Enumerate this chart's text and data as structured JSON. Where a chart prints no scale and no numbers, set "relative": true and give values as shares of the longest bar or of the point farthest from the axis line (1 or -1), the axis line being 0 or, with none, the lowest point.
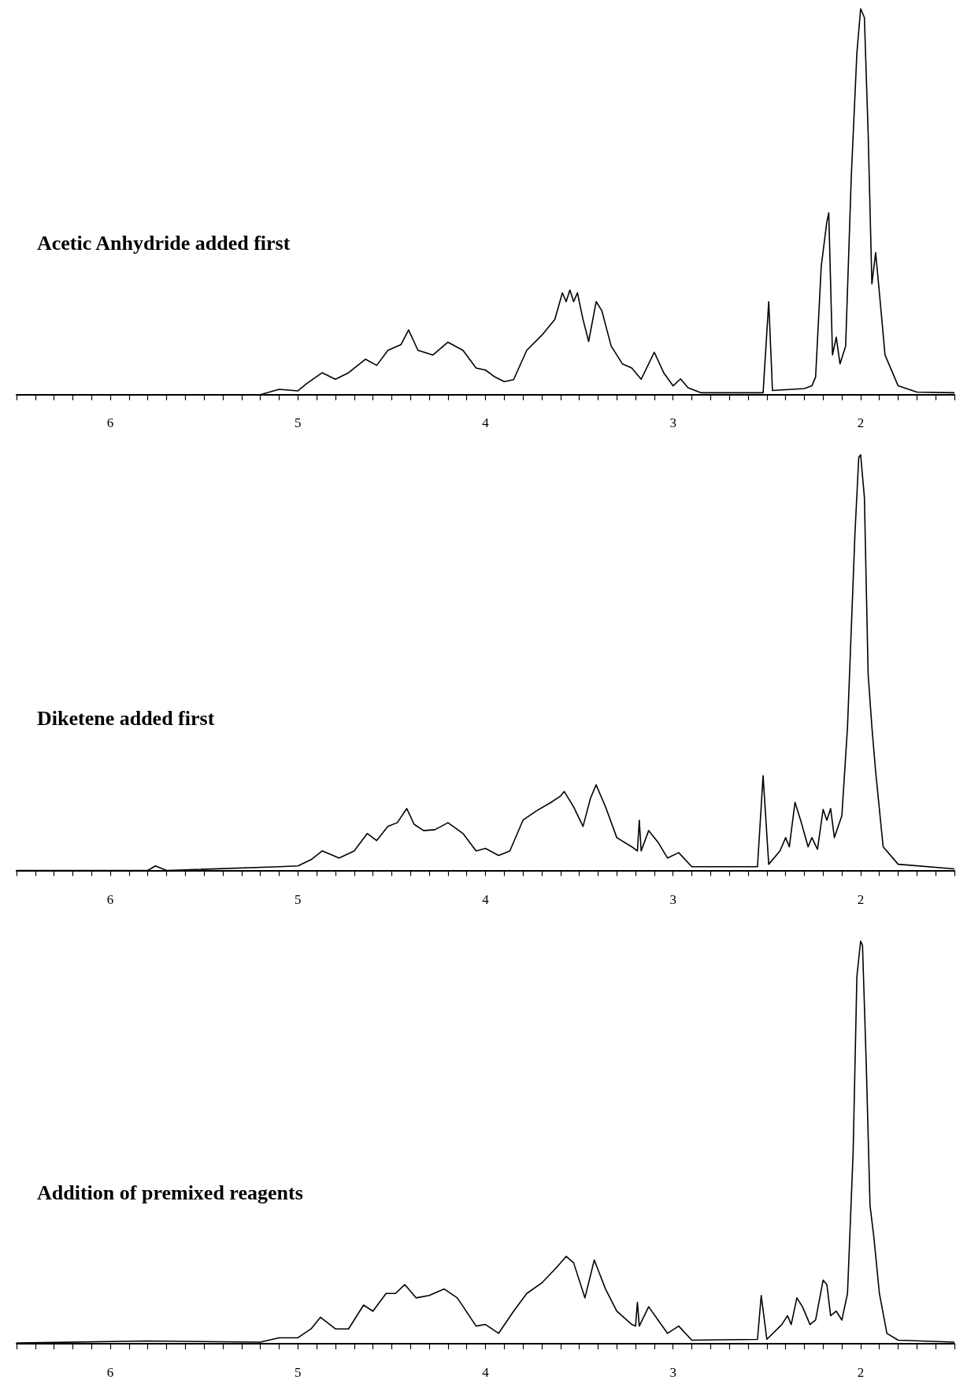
{
  "chart_data": [
    {
      "type": "line",
      "title": "Acetic Anhydride added first",
      "relative": true,
      "color": "#000000",
      "marker": "none",
      "xlim": [
        6.5,
        1.5
      ],
      "xticks": [
        {
          "value": 6.5,
          "label": null
        },
        {
          "value": 6.4,
          "label": null
        },
        {
          "value": 6.3,
          "label": null
        },
        {
          "value": 6.2,
          "label": null
        },
        {
          "value": 6.1,
          "label": null
        },
        6,
        {
          "value": 5.9,
          "label": null
        },
        {
          "value": 5.8,
          "label": null
        },
        {
          "value": 5.7,
          "label": null
        },
        {
          "value": 5.6,
          "label": null
        },
        {
          "value": 5.5,
          "label": null
        },
        {
          "value": 5.4,
          "label": null
        },
        {
          "value": 5.3,
          "label": null
        },
        {
          "value": 5.2,
          "label": null
        },
        {
          "value": 5.1,
          "label": null
        },
        5,
        {
          "value": 4.9,
          "label": null
        },
        {
          "value": 4.8,
          "label": null
        },
        {
          "value": 4.7,
          "label": null
        },
        {
          "value": 4.6,
          "label": null
        },
        {
          "value": 4.5,
          "label": null
        },
        {
          "value": 4.4,
          "label": null
        },
        {
          "value": 4.3,
          "label": null
        },
        {
          "value": 4.2,
          "label": null
        },
        {
          "value": 4.1,
          "label": null
        },
        4,
        {
          "value": 3.9,
          "label": null
        },
        {
          "value": 3.8,
          "label": null
        },
        {
          "value": 3.7,
          "label": null
        },
        {
          "value": 3.6,
          "label": null
        },
        {
          "value": 3.5,
          "label": null
        },
        {
          "value": 3.4,
          "label": null
        },
        {
          "value": 3.3,
          "label": null
        },
        {
          "value": 3.2,
          "label": null
        },
        {
          "value": 3.1,
          "label": null
        },
        3,
        {
          "value": 2.9,
          "label": null
        },
        {
          "value": 2.8,
          "label": null
        },
        {
          "value": 2.7,
          "label": null
        },
        {
          "value": 2.6,
          "label": null
        },
        {
          "value": 2.5,
          "label": null
        },
        {
          "value": 2.4,
          "label": null
        },
        {
          "value": 2.3,
          "label": null
        },
        {
          "value": 2.2,
          "label": null
        },
        {
          "value": 2.1,
          "label": null
        },
        2,
        {
          "value": 1.9,
          "label": null
        },
        {
          "value": 1.8,
          "label": null
        },
        {
          "value": 1.7,
          "label": null
        },
        {
          "value": 1.6,
          "label": null
        },
        {
          "value": 1.5,
          "label": null
        }
      ],
      "x": [
        6.5,
        5.2,
        5.1,
        5.0,
        4.95,
        4.87,
        4.8,
        4.73,
        4.64,
        4.58,
        4.52,
        4.45,
        4.41,
        4.36,
        4.28,
        4.2,
        4.12,
        4.05,
        4.0,
        3.95,
        3.9,
        3.85,
        3.78,
        3.7,
        3.63,
        3.59,
        3.57,
        3.55,
        3.53,
        3.51,
        3.48,
        3.45,
        3.41,
        3.38,
        3.33,
        3.27,
        3.22,
        3.17,
        3.1,
        3.05,
        3.0,
        2.96,
        2.92,
        2.85,
        2.52,
        2.49,
        2.47,
        2.3,
        2.26,
        2.24,
        2.21,
        2.18,
        2.17,
        2.15,
        2.13,
        2.11,
        2.08,
        2.05,
        2.02,
        2.0,
        1.98,
        1.96,
        1.94,
        1.92,
        1.9,
        1.87,
        1.8,
        1.7,
        1.5
      ],
      "values": [
        0,
        0,
        0.014,
        0.01,
        0.03,
        0.057,
        0.04,
        0.057,
        0.092,
        0.076,
        0.115,
        0.13,
        0.168,
        0.115,
        0.103,
        0.136,
        0.115,
        0.069,
        0.064,
        0.046,
        0.034,
        0.039,
        0.115,
        0.154,
        0.195,
        0.264,
        0.241,
        0.271,
        0.241,
        0.264,
        0.195,
        0.138,
        0.241,
        0.218,
        0.126,
        0.08,
        0.069,
        0.04,
        0.11,
        0.057,
        0.023,
        0.041,
        0.018,
        0.005,
        0.005,
        0.241,
        0.011,
        0.016,
        0.023,
        0.046,
        0.333,
        0.448,
        0.471,
        0.103,
        0.149,
        0.08,
        0.126,
        0.563,
        0.885,
        1.0,
        0.977,
        0.678,
        0.287,
        0.368,
        0.264,
        0.103,
        0.023,
        0.007,
        0.005
      ]
    },
    {
      "type": "line",
      "title": "Diketene added first",
      "relative": true,
      "color": "#000000",
      "marker": "none",
      "xlim": [
        6.5,
        1.5
      ],
      "xticks": [
        {
          "value": 6.5,
          "label": null
        },
        {
          "value": 6.4,
          "label": null
        },
        {
          "value": 6.3,
          "label": null
        },
        {
          "value": 6.2,
          "label": null
        },
        {
          "value": 6.1,
          "label": null
        },
        6,
        {
          "value": 5.9,
          "label": null
        },
        {
          "value": 5.8,
          "label": null
        },
        {
          "value": 5.7,
          "label": null
        },
        {
          "value": 5.6,
          "label": null
        },
        {
          "value": 5.5,
          "label": null
        },
        {
          "value": 5.4,
          "label": null
        },
        {
          "value": 5.3,
          "label": null
        },
        {
          "value": 5.2,
          "label": null
        },
        {
          "value": 5.1,
          "label": null
        },
        5,
        {
          "value": 4.9,
          "label": null
        },
        {
          "value": 4.8,
          "label": null
        },
        {
          "value": 4.7,
          "label": null
        },
        {
          "value": 4.6,
          "label": null
        },
        {
          "value": 4.5,
          "label": null
        },
        {
          "value": 4.4,
          "label": null
        },
        {
          "value": 4.3,
          "label": null
        },
        {
          "value": 4.2,
          "label": null
        },
        {
          "value": 4.1,
          "label": null
        },
        4,
        {
          "value": 3.9,
          "label": null
        },
        {
          "value": 3.8,
          "label": null
        },
        {
          "value": 3.7,
          "label": null
        },
        {
          "value": 3.6,
          "label": null
        },
        {
          "value": 3.5,
          "label": null
        },
        {
          "value": 3.4,
          "label": null
        },
        {
          "value": 3.3,
          "label": null
        },
        {
          "value": 3.2,
          "label": null
        },
        {
          "value": 3.1,
          "label": null
        },
        3,
        {
          "value": 2.9,
          "label": null
        },
        {
          "value": 2.8,
          "label": null
        },
        {
          "value": 2.7,
          "label": null
        },
        {
          "value": 2.6,
          "label": null
        },
        {
          "value": 2.5,
          "label": null
        },
        {
          "value": 2.4,
          "label": null
        },
        {
          "value": 2.3,
          "label": null
        },
        {
          "value": 2.2,
          "label": null
        },
        {
          "value": 2.1,
          "label": null
        },
        2,
        {
          "value": 1.9,
          "label": null
        },
        {
          "value": 1.8,
          "label": null
        },
        {
          "value": 1.7,
          "label": null
        },
        {
          "value": 1.6,
          "label": null
        },
        {
          "value": 1.5,
          "label": null
        }
      ],
      "x": [
        6.5,
        5.8,
        5.76,
        5.7,
        5.1,
        5.0,
        4.93,
        4.87,
        4.78,
        4.7,
        4.63,
        4.58,
        4.52,
        4.47,
        4.42,
        4.38,
        4.33,
        4.27,
        4.2,
        4.12,
        4.05,
        4.0,
        3.93,
        3.87,
        3.8,
        3.73,
        3.65,
        3.6,
        3.58,
        3.53,
        3.48,
        3.44,
        3.41,
        3.36,
        3.3,
        3.22,
        3.19,
        3.18,
        3.17,
        3.13,
        3.08,
        3.03,
        2.97,
        2.9,
        2.55,
        2.52,
        2.49,
        2.43,
        2.4,
        2.38,
        2.35,
        2.32,
        2.28,
        2.26,
        2.23,
        2.2,
        2.18,
        2.16,
        2.14,
        2.1,
        2.07,
        2.03,
        2.01,
        2.0,
        1.98,
        1.96,
        1.94,
        1.92,
        1.88,
        1.8,
        1.5
      ],
      "values": [
        0,
        0,
        0.011,
        0,
        0.009,
        0.011,
        0.026,
        0.047,
        0.03,
        0.047,
        0.089,
        0.072,
        0.106,
        0.115,
        0.149,
        0.111,
        0.096,
        0.098,
        0.115,
        0.089,
        0.047,
        0.053,
        0.036,
        0.047,
        0.121,
        0.143,
        0.164,
        0.179,
        0.19,
        0.153,
        0.106,
        0.174,
        0.206,
        0.153,
        0.079,
        0.057,
        0.047,
        0.121,
        0.047,
        0.096,
        0.068,
        0.03,
        0.043,
        0.009,
        0.009,
        0.228,
        0.015,
        0.047,
        0.079,
        0.057,
        0.164,
        0.121,
        0.057,
        0.079,
        0.051,
        0.147,
        0.121,
        0.149,
        0.079,
        0.132,
        0.345,
        0.813,
        0.994,
        1.0,
        0.898,
        0.472,
        0.345,
        0.238,
        0.057,
        0.015,
        0.004
      ]
    },
    {
      "type": "line",
      "title": "Addition of premixed reagents",
      "relative": true,
      "color": "#000000",
      "marker": "none",
      "xlim": [
        6.5,
        1.5
      ],
      "xticks": [
        {
          "value": 6.5,
          "label": null
        },
        {
          "value": 6.4,
          "label": null
        },
        {
          "value": 6.3,
          "label": null
        },
        {
          "value": 6.2,
          "label": null
        },
        {
          "value": 6.1,
          "label": null
        },
        6,
        {
          "value": 5.9,
          "label": null
        },
        {
          "value": 5.8,
          "label": null
        },
        {
          "value": 5.7,
          "label": null
        },
        {
          "value": 5.6,
          "label": null
        },
        {
          "value": 5.5,
          "label": null
        },
        {
          "value": 5.4,
          "label": null
        },
        {
          "value": 5.3,
          "label": null
        },
        {
          "value": 5.2,
          "label": null
        },
        {
          "value": 5.1,
          "label": null
        },
        5,
        {
          "value": 4.9,
          "label": null
        },
        {
          "value": 4.8,
          "label": null
        },
        {
          "value": 4.7,
          "label": null
        },
        {
          "value": 4.6,
          "label": null
        },
        {
          "value": 4.5,
          "label": null
        },
        {
          "value": 4.4,
          "label": null
        },
        {
          "value": 4.3,
          "label": null
        },
        {
          "value": 4.2,
          "label": null
        },
        {
          "value": 4.1,
          "label": null
        },
        4,
        {
          "value": 3.9,
          "label": null
        },
        {
          "value": 3.8,
          "label": null
        },
        {
          "value": 3.7,
          "label": null
        },
        {
          "value": 3.6,
          "label": null
        },
        {
          "value": 3.5,
          "label": null
        },
        {
          "value": 3.4,
          "label": null
        },
        {
          "value": 3.3,
          "label": null
        },
        {
          "value": 3.2,
          "label": null
        },
        {
          "value": 3.1,
          "label": null
        },
        3,
        {
          "value": 2.9,
          "label": null
        },
        {
          "value": 2.8,
          "label": null
        },
        {
          "value": 2.7,
          "label": null
        },
        {
          "value": 2.6,
          "label": null
        },
        {
          "value": 2.5,
          "label": null
        },
        {
          "value": 2.4,
          "label": null
        },
        {
          "value": 2.3,
          "label": null
        },
        {
          "value": 2.2,
          "label": null
        },
        {
          "value": 2.1,
          "label": null
        },
        2,
        {
          "value": 1.9,
          "label": null
        },
        {
          "value": 1.8,
          "label": null
        },
        {
          "value": 1.7,
          "label": null
        },
        {
          "value": 1.6,
          "label": null
        },
        {
          "value": 1.5,
          "label": null
        }
      ],
      "x": [
        6.5,
        5.8,
        5.2,
        5.1,
        5.0,
        4.93,
        4.88,
        4.8,
        4.73,
        4.65,
        4.6,
        4.53,
        4.48,
        4.43,
        4.37,
        4.3,
        4.22,
        4.15,
        4.05,
        4.0,
        3.93,
        3.85,
        3.78,
        3.7,
        3.62,
        3.57,
        3.53,
        3.47,
        3.42,
        3.36,
        3.3,
        3.22,
        3.2,
        3.19,
        3.18,
        3.13,
        3.08,
        3.03,
        2.97,
        2.9,
        2.55,
        2.53,
        2.5,
        2.42,
        2.39,
        2.37,
        2.34,
        2.31,
        2.27,
        2.24,
        2.2,
        2.18,
        2.16,
        2.13,
        2.1,
        2.07,
        2.04,
        2.02,
        2.0,
        1.99,
        1.97,
        1.95,
        1.93,
        1.9,
        1.86,
        1.8,
        1.5
      ],
      "values": [
        0.002,
        0.007,
        0.004,
        0.015,
        0.015,
        0.037,
        0.066,
        0.037,
        0.037,
        0.096,
        0.081,
        0.125,
        0.125,
        0.147,
        0.114,
        0.12,
        0.136,
        0.114,
        0.044,
        0.048,
        0.026,
        0.081,
        0.125,
        0.151,
        0.19,
        0.217,
        0.201,
        0.114,
        0.208,
        0.136,
        0.081,
        0.048,
        0.044,
        0.103,
        0.044,
        0.092,
        0.059,
        0.026,
        0.044,
        0.009,
        0.011,
        0.12,
        0.011,
        0.048,
        0.07,
        0.048,
        0.114,
        0.092,
        0.048,
        0.059,
        0.158,
        0.147,
        0.07,
        0.081,
        0.059,
        0.125,
        0.475,
        0.912,
        1.0,
        0.989,
        0.694,
        0.344,
        0.267,
        0.125,
        0.026,
        0.009,
        0.004
      ]
    }
  ]
}
